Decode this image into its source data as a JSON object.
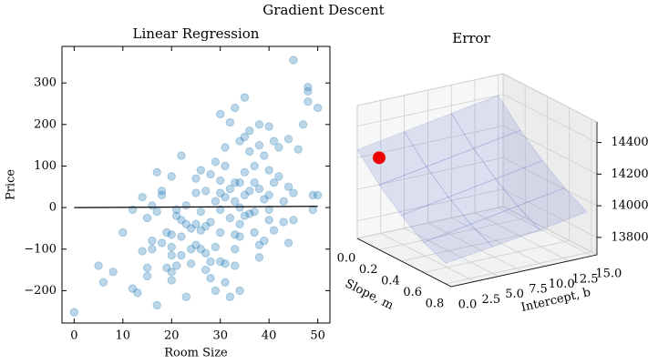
{
  "title": "Gradient Descent",
  "chart_data": [
    {
      "type": "scatter",
      "title": "Linear Regression",
      "xlabel": "Room Size",
      "ylabel": "Price",
      "x": [
        0,
        5,
        6,
        8,
        10,
        12,
        12,
        13,
        14,
        14,
        15,
        15,
        15,
        16,
        16,
        16,
        17,
        17,
        17,
        18,
        18,
        18,
        19,
        19,
        20,
        20,
        20,
        20,
        20,
        20,
        21,
        21,
        21,
        22,
        22,
        22,
        22,
        23,
        23,
        23,
        24,
        24,
        24,
        25,
        25,
        25,
        25,
        26,
        26,
        26,
        26,
        27,
        27,
        27,
        27,
        28,
        28,
        28,
        28,
        29,
        29,
        29,
        29,
        30,
        30,
        30,
        30,
        30,
        30,
        31,
        31,
        31,
        31,
        31,
        32,
        32,
        32,
        32,
        33,
        33,
        33,
        33,
        33,
        33,
        34,
        34,
        34,
        34,
        34,
        34,
        35,
        35,
        35,
        35,
        35,
        36,
        36,
        36,
        36,
        37,
        37,
        37,
        37,
        38,
        38,
        38,
        38,
        38,
        39,
        39,
        39,
        40,
        40,
        40,
        40,
        40,
        41,
        41,
        41,
        42,
        42,
        43,
        43,
        44,
        44,
        44,
        45,
        45,
        45,
        46,
        47,
        48,
        48,
        48,
        49,
        49,
        50,
        50
      ],
      "values": [
        -252,
        -140,
        -180,
        -155,
        -60,
        -195,
        -5,
        -205,
        -105,
        25,
        -165,
        -25,
        -145,
        -80,
        -100,
        5,
        -235,
        85,
        -10,
        30,
        40,
        -85,
        -60,
        -145,
        -155,
        -175,
        -95,
        -115,
        -65,
        75,
        -5,
        -20,
        -140,
        -70,
        -30,
        -115,
        125,
        -40,
        -215,
        5,
        -135,
        -100,
        -50,
        -40,
        -90,
        35,
        70,
        -100,
        -55,
        90,
        -10,
        -45,
        -110,
        -150,
        40,
        -35,
        -130,
        -170,
        80,
        -200,
        -95,
        15,
        110,
        225,
        -130,
        -60,
        35,
        -5,
        65,
        100,
        -135,
        25,
        145,
        -180,
        -215,
        205,
        45,
        -25,
        60,
        15,
        240,
        -65,
        -100,
        -140,
        160,
        60,
        0,
        -70,
        -40,
        -200,
        170,
        265,
        85,
        30,
        -20,
        185,
        135,
        40,
        -15,
        100,
        60,
        -10,
        -60,
        150,
        200,
        45,
        -90,
        -120,
        125,
        -80,
        20,
        195,
        90,
        -30,
        30,
        -5,
        160,
        60,
        -55,
        145,
        75,
        15,
        -35,
        165,
        50,
        -85,
        355,
        35,
        -30,
        140,
        200,
        280,
        290,
        255,
        30,
        -5,
        30,
        240
      ],
      "color": "#1f77b4",
      "alpha": 0.3,
      "line": {
        "x": [
          0,
          50
        ],
        "values": [
          0,
          3
        ],
        "color": "#000000"
      },
      "xlim": [
        -2.5,
        52.5
      ],
      "ylim": [
        -278,
        388
      ],
      "xticks": [
        0,
        10,
        20,
        30,
        40,
        50
      ],
      "yticks": [
        {
          "value": -200,
          "label": "−200"
        },
        {
          "value": -100,
          "label": "−100"
        },
        0,
        100,
        200,
        300
      ]
    },
    {
      "type": "surface3d",
      "title": "Error",
      "xlabel": "Slope, m",
      "ylabel": "Intercept, b",
      "surface": {
        "m": [
          0,
          0.2,
          0.4,
          0.6,
          0.8
        ],
        "b": [
          0,
          5,
          10,
          15
        ],
        "z": [
          [
            14250,
            14300,
            14350,
            14400
          ],
          [
            14100,
            14150,
            14200,
            14250
          ],
          [
            13980,
            14030,
            14080,
            14130
          ],
          [
            13880,
            13930,
            13980,
            14030
          ],
          [
            13820,
            13860,
            13900,
            13950
          ]
        ],
        "color": "#6677cc"
      },
      "point": {
        "m": 0,
        "b": 0,
        "z": 14200,
        "color": "#ee0000"
      },
      "xlim": [
        0,
        0.85
      ],
      "ylim": [
        0,
        15.5
      ],
      "zlim": [
        13690,
        14530
      ],
      "xticks": [
        {
          "value": 0,
          "label": "0.0"
        },
        {
          "value": 0.2,
          "label": "0.2"
        },
        {
          "value": 0.4,
          "label": "0.4"
        },
        {
          "value": 0.6,
          "label": "0.6"
        },
        {
          "value": 0.8,
          "label": "0.8"
        }
      ],
      "yticks": [
        {
          "value": 0,
          "label": "0.0"
        },
        2.5,
        {
          "value": 5,
          "label": "5.0"
        },
        7.5,
        {
          "value": 10,
          "label": "10.0"
        },
        12.5,
        {
          "value": 15,
          "label": "15.0"
        }
      ],
      "zticks": [
        13800,
        14000,
        14200,
        14400
      ]
    }
  ]
}
